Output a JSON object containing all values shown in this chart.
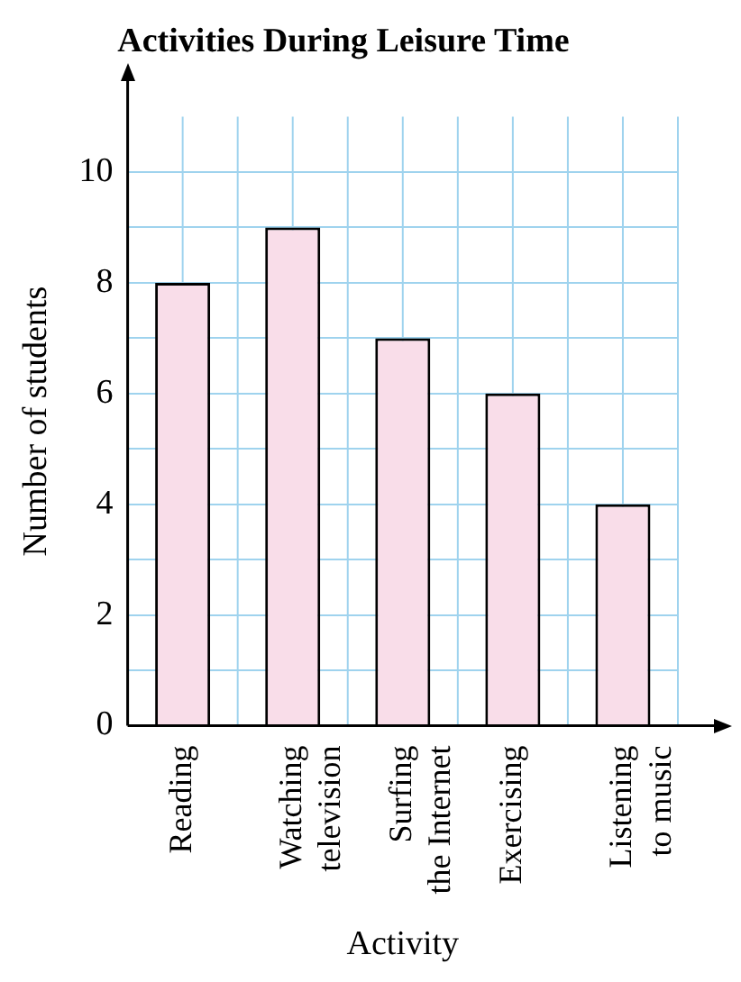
{
  "chart_data": {
    "type": "bar",
    "title": "Activities During Leisure Time",
    "xlabel": "Activity",
    "ylabel": "Number of students",
    "categories": [
      "Reading",
      "Watching\ntelevision",
      "Surfing\nthe Internet",
      "Exercising",
      "Listening\nto music"
    ],
    "values": [
      8,
      9,
      7,
      6,
      4
    ],
    "color": "#f9dde9",
    "ylim": [
      0,
      11
    ],
    "yticks": [
      0,
      {
        "value": 1,
        "label": null
      },
      2,
      {
        "value": 3,
        "label": null
      },
      4,
      {
        "value": 5,
        "label": null
      },
      6,
      {
        "value": 7,
        "label": null
      },
      8,
      {
        "value": 9,
        "label": null
      },
      10
    ],
    "grid": true
  }
}
